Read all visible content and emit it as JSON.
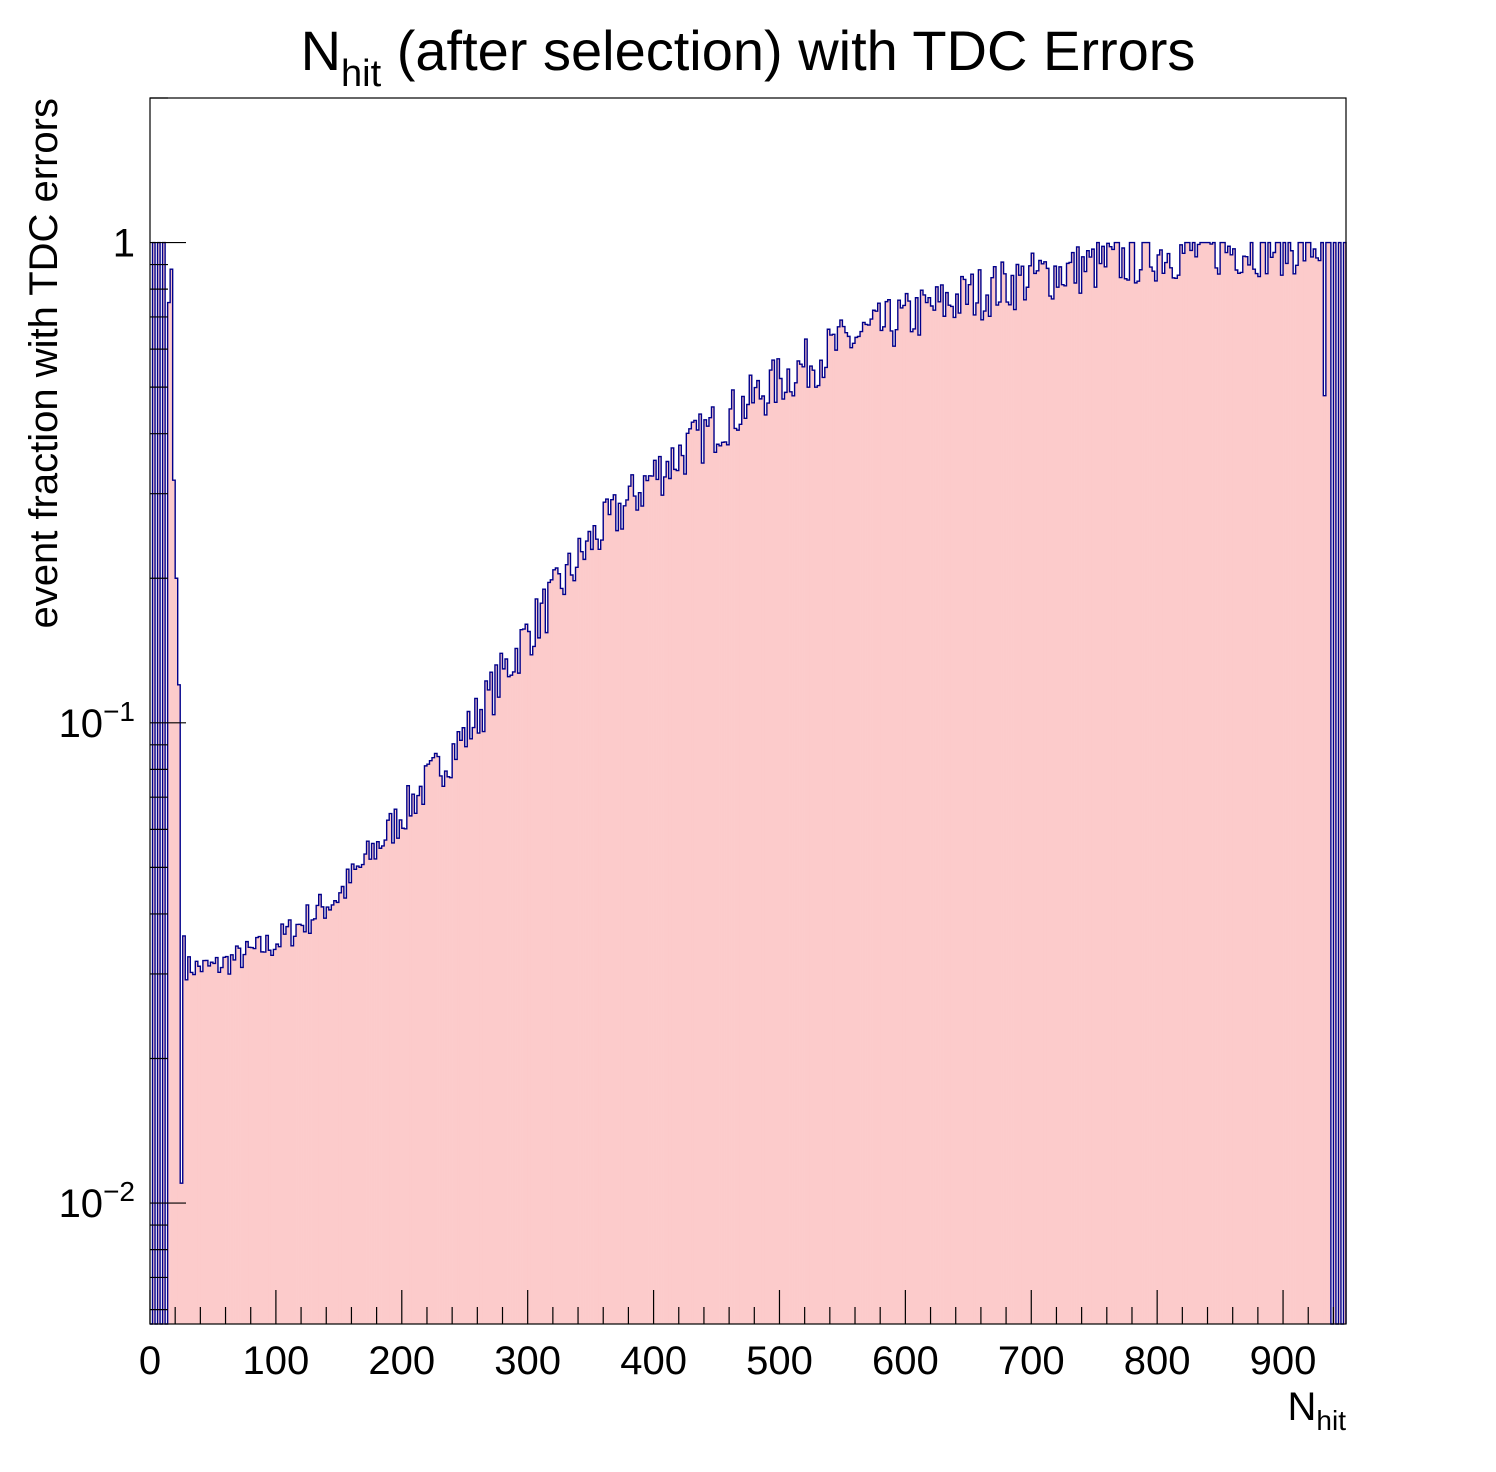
{
  "colors": {
    "background": "#ffffff",
    "fill": "#fccbcb",
    "line": "#00008b",
    "axis": "#000000"
  },
  "chart_data": {
    "type": "histogram",
    "title": {
      "main": "N",
      "sub": "hit",
      "rest": " (after selection) with TDC Errors"
    },
    "xlabel": {
      "main": "N",
      "sub": "hit"
    },
    "ylabel": "event fraction with TDC errors",
    "xlim": [
      0,
      950
    ],
    "ylim": [
      0.0056,
      2.0
    ],
    "yscale": "log",
    "bin_width": 2,
    "x_ticks": [
      "0",
      "100",
      "200",
      "300",
      "400",
      "500",
      "600",
      "700",
      "800",
      "900"
    ],
    "x_tick_values": [
      0,
      100,
      200,
      300,
      400,
      500,
      600,
      700,
      800,
      900
    ],
    "y_ticks": [
      {
        "value": 1,
        "base": "1",
        "exp": ""
      },
      {
        "value": 0.1,
        "base": "10",
        "exp": "−1"
      },
      {
        "value": 0.01,
        "base": "10",
        "exp": "−2"
      }
    ],
    "special_bins": [
      {
        "x": 2,
        "y": 1.0
      },
      {
        "x": 4,
        "y": 0
      },
      {
        "x": 6,
        "y": 1.0
      },
      {
        "x": 8,
        "y": 0
      },
      {
        "x": 10,
        "y": 1.0
      },
      {
        "x": 12,
        "y": 0
      },
      {
        "x": 14,
        "y": 0.75
      },
      {
        "x": 16,
        "y": 0.88
      },
      {
        "x": 18,
        "y": 0.32
      },
      {
        "x": 20,
        "y": 0.2
      },
      {
        "x": 22,
        "y": 0.12
      },
      {
        "x": 24,
        "y": 0.011
      },
      {
        "x": 26,
        "y": 0.036
      },
      {
        "x": 932,
        "y": 0.48
      },
      {
        "x": 934,
        "y": 1.0
      },
      {
        "x": 936,
        "y": 1.0
      },
      {
        "x": 938,
        "y": 0
      },
      {
        "x": 940,
        "y": 1.0
      },
      {
        "x": 942,
        "y": 0
      },
      {
        "x": 944,
        "y": 1.0
      },
      {
        "x": 946,
        "y": 0
      },
      {
        "x": 948,
        "y": 1.0
      }
    ],
    "trend": [
      {
        "x": 28,
        "y": 0.031
      },
      {
        "x": 50,
        "y": 0.031
      },
      {
        "x": 100,
        "y": 0.035
      },
      {
        "x": 150,
        "y": 0.044
      },
      {
        "x": 200,
        "y": 0.065
      },
      {
        "x": 250,
        "y": 0.095
      },
      {
        "x": 300,
        "y": 0.155
      },
      {
        "x": 350,
        "y": 0.24
      },
      {
        "x": 400,
        "y": 0.33
      },
      {
        "x": 450,
        "y": 0.42
      },
      {
        "x": 500,
        "y": 0.52
      },
      {
        "x": 550,
        "y": 0.62
      },
      {
        "x": 600,
        "y": 0.7
      },
      {
        "x": 650,
        "y": 0.78
      },
      {
        "x": 700,
        "y": 0.85
      },
      {
        "x": 750,
        "y": 0.9
      },
      {
        "x": 800,
        "y": 0.95
      },
      {
        "x": 850,
        "y": 0.97
      },
      {
        "x": 900,
        "y": 0.98
      },
      {
        "x": 930,
        "y": 0.98
      }
    ],
    "noise": {
      "seed": 7,
      "relative_amplitude": 0.13
    },
    "clip_max": 1.0
  }
}
